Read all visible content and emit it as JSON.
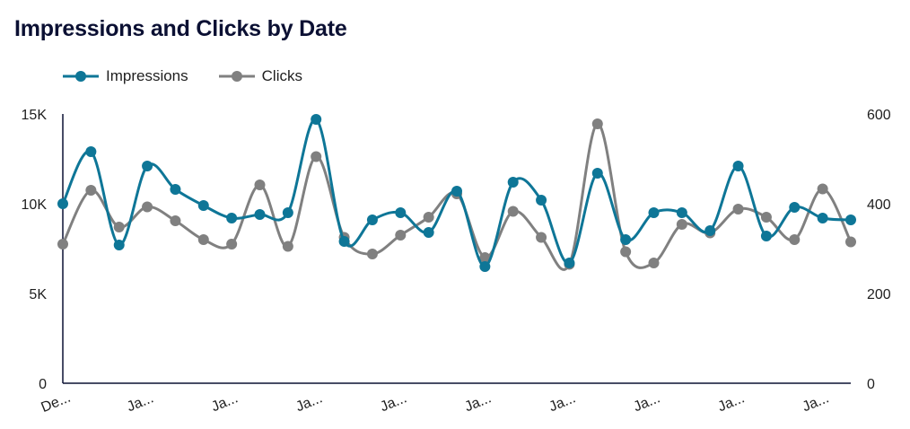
{
  "chart_data": {
    "type": "line",
    "title": "Impressions and Clicks by Date",
    "xlabel": "",
    "ylabel": "",
    "x_tick_labels": [
      "De...",
      "Ja...",
      "Ja...",
      "Ja...",
      "Ja...",
      "Ja...",
      "Ja...",
      "Ja...",
      "Ja...",
      "Ja..."
    ],
    "y_left": {
      "range": [
        0,
        15000
      ],
      "ticks": [
        "0",
        "5K",
        "10K",
        "15K"
      ]
    },
    "y_right": {
      "range": [
        0,
        600
      ],
      "ticks": [
        "0",
        "200",
        "400",
        "600"
      ]
    },
    "grid": false,
    "legend_position": "top-left",
    "series": [
      {
        "name": "Impressions",
        "axis": "left",
        "color": "#0e7697",
        "values": [
          10000,
          12900,
          7700,
          12100,
          10800,
          9900,
          9200,
          9400,
          9500,
          14700,
          7900,
          9100,
          9500,
          8400,
          10700,
          6500,
          11200,
          10200,
          6700,
          11700,
          8000,
          9500,
          9500,
          8500,
          12100,
          8200,
          9800,
          9200,
          9100
        ]
      },
      {
        "name": "Clicks",
        "axis": "right",
        "color": "#808080",
        "values": [
          310,
          430,
          348,
          393,
          362,
          320,
          310,
          442,
          305,
          505,
          325,
          288,
          330,
          370,
          422,
          280,
          383,
          325,
          265,
          578,
          293,
          268,
          354,
          335,
          388,
          370,
          320,
          433,
          315
        ]
      }
    ]
  }
}
